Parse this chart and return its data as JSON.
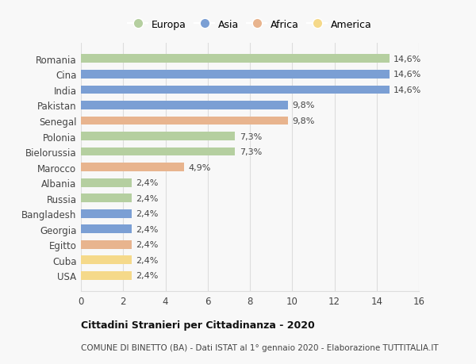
{
  "categories": [
    "Romania",
    "Cina",
    "India",
    "Pakistan",
    "Senegal",
    "Polonia",
    "Bielorussia",
    "Marocco",
    "Albania",
    "Russia",
    "Bangladesh",
    "Georgia",
    "Egitto",
    "Cuba",
    "USA"
  ],
  "values": [
    14.6,
    14.6,
    14.6,
    9.8,
    9.8,
    7.3,
    7.3,
    4.9,
    2.4,
    2.4,
    2.4,
    2.4,
    2.4,
    2.4,
    2.4
  ],
  "colors": [
    "#b5cfa0",
    "#7b9fd4",
    "#7b9fd4",
    "#7b9fd4",
    "#e8b48e",
    "#b5cfa0",
    "#b5cfa0",
    "#e8b48e",
    "#b5cfa0",
    "#b5cfa0",
    "#7b9fd4",
    "#7b9fd4",
    "#e8b48e",
    "#f5d98a",
    "#f5d98a"
  ],
  "legend_labels": [
    "Europa",
    "Asia",
    "Africa",
    "America"
  ],
  "legend_colors": [
    "#b5cfa0",
    "#7b9fd4",
    "#e8b48e",
    "#f5d98a"
  ],
  "labels": [
    "14,6%",
    "14,6%",
    "14,6%",
    "9,8%",
    "9,8%",
    "7,3%",
    "7,3%",
    "4,9%",
    "2,4%",
    "2,4%",
    "2,4%",
    "2,4%",
    "2,4%",
    "2,4%",
    "2,4%"
  ],
  "title": "Cittadini Stranieri per Cittadinanza - 2020",
  "subtitle": "COMUNE DI BINETTO (BA) - Dati ISTAT al 1° gennaio 2020 - Elaborazione TUTTITALIA.IT",
  "xlim": [
    0,
    16
  ],
  "xticks": [
    0,
    2,
    4,
    6,
    8,
    10,
    12,
    14,
    16
  ],
  "background_color": "#f8f8f8",
  "grid_color": "#dddddd",
  "bar_height": 0.55
}
